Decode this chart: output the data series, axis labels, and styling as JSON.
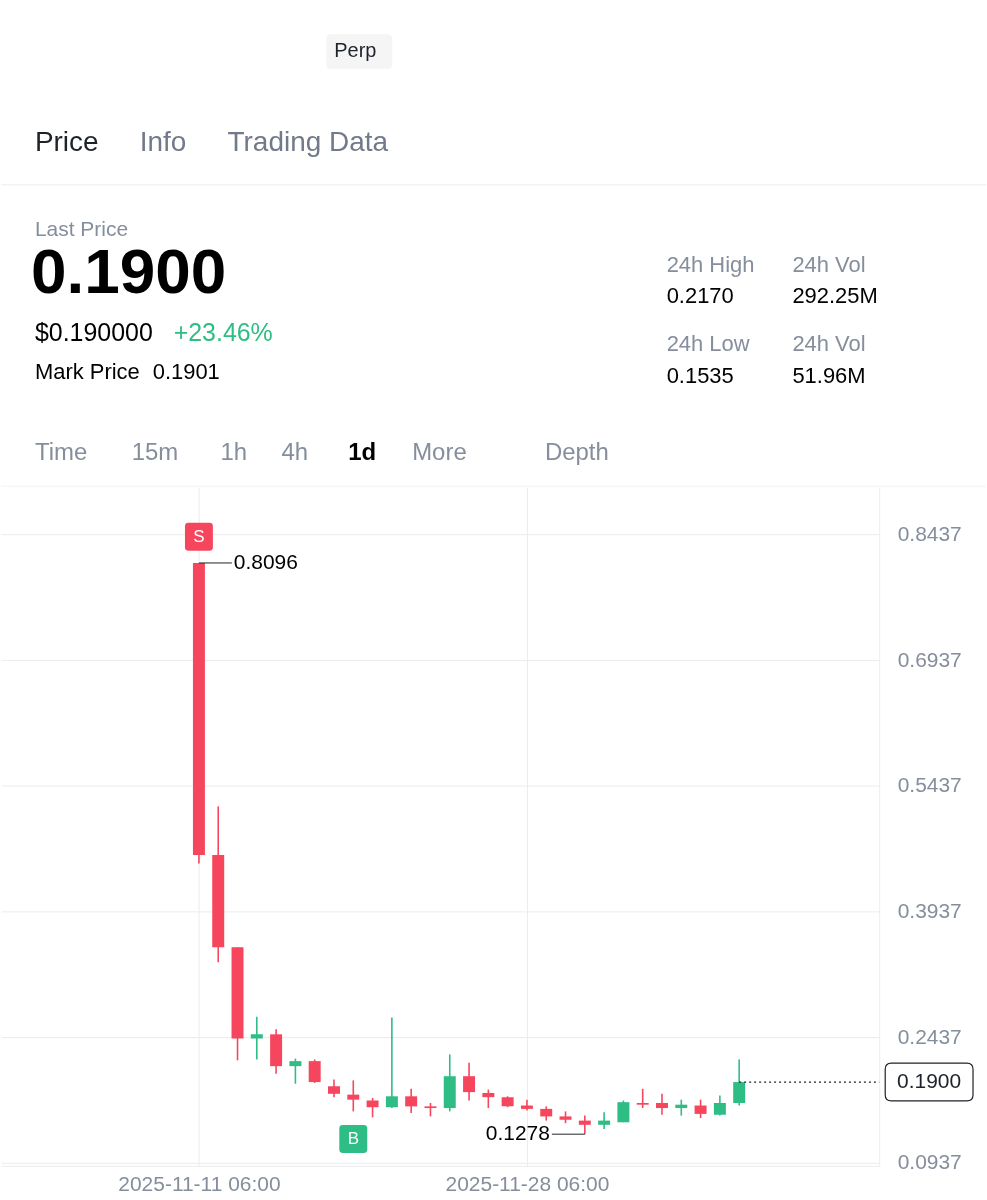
{
  "chart_data": {
    "type": "candlestick",
    "x": [
      "2025-11-11T06:00",
      "2025-11-12T06:00",
      "2025-11-13T06:00",
      "2025-11-14T06:00",
      "2025-11-15T06:00",
      "2025-11-16T06:00",
      "2025-11-17T06:00",
      "2025-11-18T06:00",
      "2025-11-19T06:00",
      "2025-11-20T06:00",
      "2025-11-21T06:00",
      "2025-11-22T06:00",
      "2025-11-23T06:00",
      "2025-11-24T06:00",
      "2025-11-25T06:00",
      "2025-11-26T06:00",
      "2025-11-27T06:00",
      "2025-11-28T06:00",
      "2025-11-29T06:00",
      "2025-11-30T06:00",
      "2025-12-01T06:00",
      "2025-12-02T06:00",
      "2025-12-03T06:00",
      "2025-12-04T06:00",
      "2025-12-05T06:00",
      "2025-12-06T06:00",
      "2025-12-07T06:00",
      "2025-12-08T06:00",
      "2025-12-09T06:00"
    ],
    "ohlc": [
      [
        0.8096,
        0.8096,
        0.451,
        0.461
      ],
      [
        0.461,
        0.519,
        0.333,
        0.351
      ],
      [
        0.351,
        0.351,
        0.216,
        0.242
      ],
      [
        0.242,
        0.268,
        0.217,
        0.247
      ],
      [
        0.247,
        0.253,
        0.2,
        0.209
      ],
      [
        0.209,
        0.218,
        0.188,
        0.215
      ],
      [
        0.215,
        0.217,
        0.189,
        0.19
      ],
      [
        0.185,
        0.193,
        0.172,
        0.176
      ],
      [
        0.175,
        0.192,
        0.155,
        0.169
      ],
      [
        0.168,
        0.171,
        0.148,
        0.16
      ],
      [
        0.16,
        0.267,
        0.159,
        0.173
      ],
      [
        0.173,
        0.182,
        0.153,
        0.161
      ],
      [
        0.161,
        0.165,
        0.149,
        0.159
      ],
      [
        0.159,
        0.223,
        0.155,
        0.197
      ],
      [
        0.197,
        0.213,
        0.168,
        0.178
      ],
      [
        0.177,
        0.181,
        0.159,
        0.172
      ],
      [
        0.172,
        0.173,
        0.16,
        0.161
      ],
      [
        0.162,
        0.169,
        0.156,
        0.158
      ],
      [
        0.158,
        0.161,
        0.144,
        0.149
      ],
      [
        0.149,
        0.155,
        0.141,
        0.145
      ],
      [
        0.144,
        0.15,
        0.1278,
        0.139
      ],
      [
        0.139,
        0.154,
        0.134,
        0.144
      ],
      [
        0.142,
        0.168,
        0.142,
        0.166
      ],
      [
        0.165,
        0.182,
        0.159,
        0.163
      ],
      [
        0.165,
        0.176,
        0.151,
        0.159
      ],
      [
        0.159,
        0.169,
        0.15,
        0.163
      ],
      [
        0.162,
        0.169,
        0.147,
        0.152
      ],
      [
        0.151,
        0.174,
        0.15,
        0.165
      ],
      [
        0.165,
        0.217,
        0.162,
        0.19
      ]
    ],
    "colors": [
      "#f6465d",
      "#f6465d",
      "#f6465d",
      "#2ebd85",
      "#f6465d",
      "#2ebd85",
      "#f6465d",
      "#f6465d",
      "#f6465d",
      "#f6465d",
      "#2ebd85",
      "#f6465d",
      "#f6465d",
      "#2ebd85",
      "#f6465d",
      "#f6465d",
      "#f6465d",
      "#f6465d",
      "#f6465d",
      "#f6465d",
      "#f6465d",
      "#2ebd85",
      "#2ebd85",
      "#f6465d",
      "#f6465d",
      "#2ebd85",
      "#f6465d",
      "#2ebd85",
      "#2ebd85"
    ],
    "xlim": [
      "2025-11-01T06:00",
      "2025-12-16T06:00"
    ],
    "xticks": [
      {
        "value": "2025-11-11T06:00",
        "label": "2025-11-11 06:00"
      },
      {
        "value": "2025-11-28T06:00",
        "label": "2025-11-28 06:00"
      }
    ],
    "ylim": [
      0.09,
      0.9
    ],
    "yticks": [
      0.0937,
      0.2437,
      0.3937,
      0.5437,
      0.6937,
      0.8437
    ],
    "grid": true,
    "ref_lines": [
      {
        "axis": "y",
        "value": 0.19,
        "label": "0.1900",
        "line_style": "dotted",
        "color": "#1e2329"
      }
    ],
    "annotations": [
      "Perp",
      "Price",
      "Info",
      "Trading Data",
      "Last Price",
      "0.1900",
      "$0.190000",
      "+23.46%",
      "Mark Price",
      "0.1901",
      "24h High",
      "0.2170",
      "24h Vol",
      "292.25M",
      "24h Low",
      "0.1535",
      "24h Vol",
      "51.96M",
      "Time",
      "15m",
      "1h",
      "4h",
      "1d",
      "More",
      "Depth",
      {
        "text": "0.8096",
        "x": "2025-11-11T06:00",
        "y": 0.8096
      },
      {
        "text": "0.1278",
        "x": "2025-12-01T06:00",
        "y": 0.1278
      },
      {
        "text": "S",
        "x": "2025-11-11T06:00",
        "y": 0.841
      },
      {
        "text": "B",
        "x": "2025-11-19T06:00",
        "y": 0.122
      }
    ]
  }
}
